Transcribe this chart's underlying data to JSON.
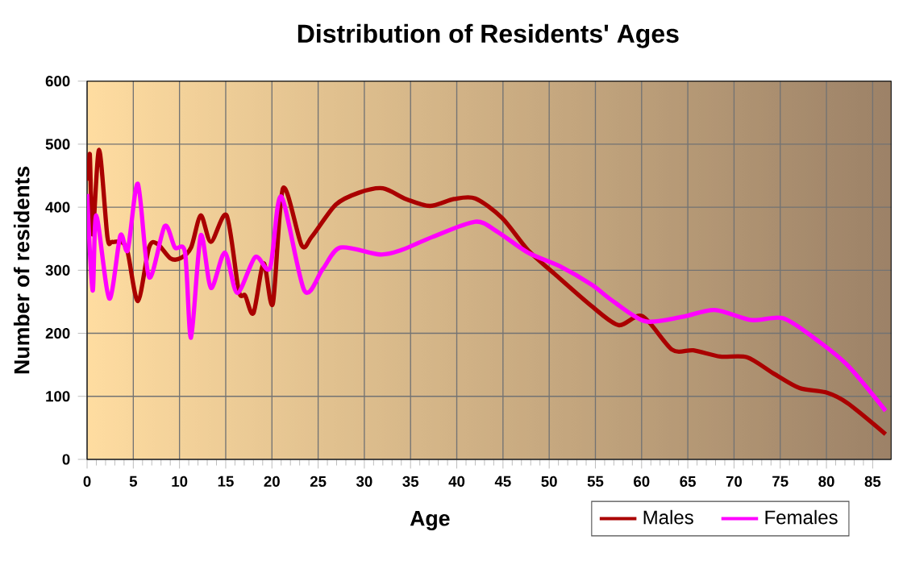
{
  "chart_data": {
    "type": "line",
    "title": "Distribution of Residents' Ages",
    "xlabel": "Age",
    "ylabel": "Number of residents",
    "xlim": [
      0,
      87
    ],
    "xticks": [
      0,
      5,
      10,
      15,
      20,
      25,
      30,
      35,
      40,
      45,
      50,
      55,
      60,
      65,
      70,
      75,
      80,
      85
    ],
    "ylim": [
      0,
      600
    ],
    "yticks": [
      0,
      100,
      200,
      300,
      400,
      500,
      600
    ],
    "grid": true,
    "legend": "bottom right",
    "marker": "none",
    "line_style": "solid",
    "series": [
      {
        "name": "Males",
        "color": "#aa0000",
        "x": [
          0.2,
          0.3,
          0.6,
          1.3,
          2.2,
          2.7,
          3.75,
          4.4,
          5.5,
          6.7,
          7.6,
          9,
          10.1,
          11.25,
          12.3,
          13.4,
          15.1,
          16.4,
          17.1,
          18,
          19.1,
          20.1,
          21.2,
          23.2,
          24.3,
          26.9,
          29.4,
          32,
          34.5,
          37.1,
          39.7,
          42,
          44.9,
          47.7,
          50.6,
          54.6,
          57.5,
          60.1,
          63.3,
          65.6,
          68.5,
          71.4,
          74.3,
          77.1,
          80,
          82.3,
          86.4
        ],
        "values": [
          442,
          483,
          357,
          491,
          353,
          345,
          345,
          328,
          251,
          336,
          342,
          319,
          319,
          336,
          387,
          345,
          387,
          268,
          260,
          232,
          311,
          247,
          430,
          340,
          353,
          404,
          423,
          430,
          413,
          402,
          413,
          414,
          383,
          332,
          294,
          243,
          213,
          227,
          174,
          173,
          163,
          162,
          136,
          113,
          106,
          89,
          40
        ]
      },
      {
        "name": "Females",
        "color": "#ff00ff",
        "x": [
          0,
          0.6,
          1,
          2.4,
          3.6,
          4.4,
          5.5,
          6.7,
          8.4,
          9.5,
          10.6,
          11.25,
          12.3,
          13.4,
          14.9,
          16.25,
          18.2,
          19.8,
          21,
          23.5,
          25.5,
          27.4,
          31.7,
          34,
          37.4,
          42,
          44.3,
          47.7,
          51.2,
          54.6,
          56.9,
          60.4,
          64.4,
          67.9,
          71.9,
          75.3,
          78.8,
          82.3,
          86.4
        ],
        "values": [
          421,
          268,
          387,
          255,
          355,
          332,
          437,
          289,
          370,
          336,
          328,
          193,
          355,
          272,
          328,
          264,
          321,
          304,
          417,
          268,
          302,
          336,
          325,
          332,
          353,
          377,
          362,
          328,
          306,
          277,
          251,
          219,
          226,
          237,
          221,
          224,
          191,
          149,
          77
        ]
      }
    ]
  }
}
